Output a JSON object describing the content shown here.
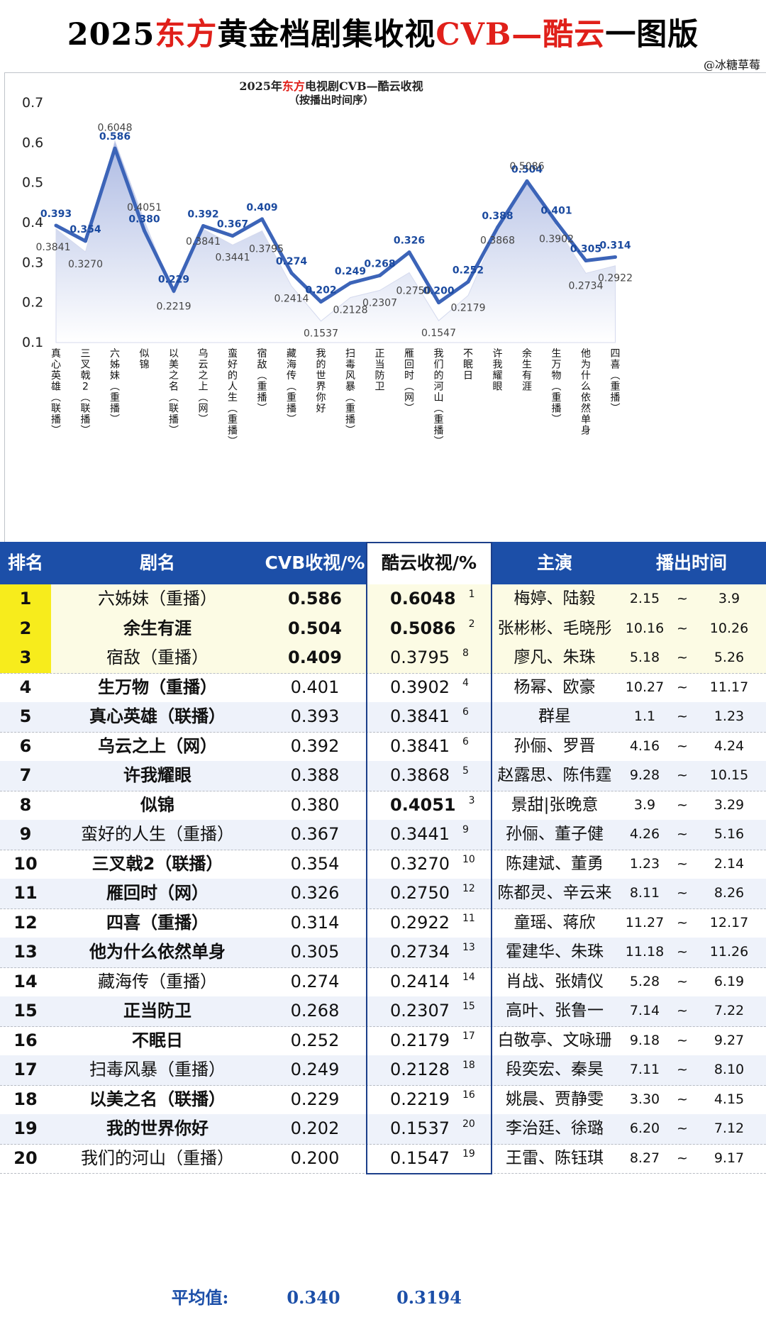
{
  "title": {
    "pre": "2025",
    "red1": "东方",
    "mid": "黄金档剧集收视",
    "red2": "CVB—酷云",
    "post": "一图版"
  },
  "watermark": "@冰糖草莓",
  "chart_data": {
    "type": "line",
    "title_pre": "2025年",
    "title_red": "东方",
    "title_post": "电视剧CVB—酷云收视",
    "subtitle": "（按播出时间序）",
    "ylim": [
      0.1,
      0.7
    ],
    "yticks": [
      "0.7",
      "0.6",
      "0.5",
      "0.4",
      "0.3",
      "0.2",
      "0.1"
    ],
    "categories": [
      "真心英雄（联播）",
      "三叉戟2（联播）",
      "六姊妹（重播）",
      "似锦",
      "以美之名（联播）",
      "乌云之上（网）",
      "蛮好的人生（重播）",
      "宿敌（重播）",
      "藏海传（重播）",
      "我的世界你好",
      "扫毒风暴（重播）",
      "正当防卫",
      "雁回时（网）",
      "我们的河山（重播）",
      "不眠日",
      "许我耀眼",
      "余生有涯",
      "生万物（重播）",
      "他为什么依然单身",
      "四喜（重播）"
    ],
    "cvb": [
      0.393,
      0.354,
      0.586,
      0.38,
      0.229,
      0.392,
      0.367,
      0.409,
      0.274,
      0.202,
      0.249,
      0.268,
      0.326,
      0.2,
      0.252,
      0.388,
      0.504,
      0.401,
      0.305,
      0.314
    ],
    "kuyun": [
      0.3841,
      0.327,
      0.6048,
      0.4051,
      0.2219,
      0.3841,
      0.3441,
      0.3795,
      0.2414,
      0.1537,
      0.2128,
      0.2307,
      0.275,
      0.1547,
      0.2179,
      0.3868,
      0.5086,
      0.3902,
      0.2734,
      0.2922
    ],
    "cvb_labels": [
      "0.393",
      "0.354",
      "0.586",
      "0.380",
      "0.229",
      "0.392",
      "0.367",
      "0.409",
      "0.274",
      "0.202",
      "0.249",
      "0.268",
      "0.326",
      "0.200",
      "0.252",
      "0.388",
      "0.504",
      "0.401",
      "0.305",
      "0.314"
    ],
    "kuyun_labels": [
      "0.3841",
      "0.3270",
      "0.6048",
      "0.4051",
      "0.2219",
      "0.3841",
      "0.3441",
      "0.3795",
      "0.2414",
      "0.1537",
      "0.2128",
      "0.2307",
      "0.2750",
      "0.1547",
      "0.2179",
      "0.3868",
      "0.5086",
      "0.3902",
      "0.2734",
      "0.2922"
    ],
    "kuyun_label_side": [
      "left",
      "below",
      "above",
      "above",
      "below",
      "below",
      "below",
      "right",
      "below",
      "below",
      "below",
      "below",
      "right",
      "below",
      "below",
      "below",
      "above",
      "below",
      "below",
      "below"
    ],
    "colors": {
      "cvb_line": "#3c64b8",
      "cvb_label": "#1b4a9f",
      "kuyun_area": "#c5cde9",
      "kuyun_label": "#444444"
    }
  },
  "table": {
    "headers": [
      "排名",
      "剧名",
      "CVB收视/%",
      "酷云收视/%",
      "主演",
      "播出时间"
    ],
    "rows": [
      {
        "rank": "1",
        "name": "六姊妹（重播）",
        "cvb": "0.586",
        "kuyun": "0.6048",
        "krank": "1",
        "actors": "梅婷、陆毅",
        "start": "2.15",
        "tilde": "~",
        "end": "3.9"
      },
      {
        "rank": "2",
        "name": "余生有涯",
        "cvb": "0.504",
        "kuyun": "0.5086",
        "krank": "2",
        "actors": "张彬彬、毛晓彤",
        "start": "10.16",
        "tilde": "~",
        "end": "10.26"
      },
      {
        "rank": "3",
        "name": "宿敌（重播）",
        "cvb": "0.409",
        "kuyun": "0.3795",
        "krank": "8",
        "actors": "廖凡、朱珠",
        "start": "5.18",
        "tilde": "~",
        "end": "5.26"
      },
      {
        "rank": "4",
        "name": "生万物（重播）",
        "cvb": "0.401",
        "kuyun": "0.3902",
        "krank": "4",
        "actors": "杨幂、欧豪",
        "start": "10.27",
        "tilde": "~",
        "end": "11.17"
      },
      {
        "rank": "5",
        "name": "真心英雄（联播）",
        "cvb": "0.393",
        "kuyun": "0.3841",
        "krank": "6",
        "actors": "群星",
        "start": "1.1",
        "tilde": "~",
        "end": "1.23"
      },
      {
        "rank": "6",
        "name": "乌云之上（网）",
        "cvb": "0.392",
        "kuyun": "0.3841",
        "krank": "6",
        "actors": "孙俪、罗晋",
        "start": "4.16",
        "tilde": "~",
        "end": "4.24"
      },
      {
        "rank": "7",
        "name": "许我耀眼",
        "cvb": "0.388",
        "kuyun": "0.3868",
        "krank": "5",
        "actors": "赵露思、陈伟霆",
        "start": "9.28",
        "tilde": "~",
        "end": "10.15"
      },
      {
        "rank": "8",
        "name": "似锦",
        "cvb": "0.380",
        "kuyun": "0.4051",
        "krank": "3",
        "actors": "景甜|张晚意",
        "start": "3.9",
        "tilde": "~",
        "end": "3.29"
      },
      {
        "rank": "9",
        "name": "蛮好的人生（重播）",
        "cvb": "0.367",
        "kuyun": "0.3441",
        "krank": "9",
        "actors": "孙俪、董子健",
        "start": "4.26",
        "tilde": "~",
        "end": "5.16"
      },
      {
        "rank": "10",
        "name": "三叉戟2（联播）",
        "cvb": "0.354",
        "kuyun": "0.3270",
        "krank": "10",
        "actors": "陈建斌、董勇",
        "start": "1.23",
        "tilde": "~",
        "end": "2.14"
      },
      {
        "rank": "11",
        "name": "雁回时（网）",
        "cvb": "0.326",
        "kuyun": "0.2750",
        "krank": "12",
        "actors": "陈都灵、辛云来",
        "start": "8.11",
        "tilde": "~",
        "end": "8.26"
      },
      {
        "rank": "12",
        "name": "四喜（重播）",
        "cvb": "0.314",
        "kuyun": "0.2922",
        "krank": "11",
        "actors": "童瑶、蒋欣",
        "start": "11.27",
        "tilde": "~",
        "end": "12.17"
      },
      {
        "rank": "13",
        "name": "他为什么依然单身",
        "cvb": "0.305",
        "kuyun": "0.2734",
        "krank": "13",
        "actors": "霍建华、朱珠",
        "start": "11.18",
        "tilde": "~",
        "end": "11.26"
      },
      {
        "rank": "14",
        "name": "藏海传（重播）",
        "cvb": "0.274",
        "kuyun": "0.2414",
        "krank": "14",
        "actors": "肖战、张婧仪",
        "start": "5.28",
        "tilde": "~",
        "end": "6.19"
      },
      {
        "rank": "15",
        "name": "正当防卫",
        "cvb": "0.268",
        "kuyun": "0.2307",
        "krank": "15",
        "actors": "高叶、张鲁一",
        "start": "7.14",
        "tilde": "~",
        "end": "7.22"
      },
      {
        "rank": "16",
        "name": "不眠日",
        "cvb": "0.252",
        "kuyun": "0.2179",
        "krank": "17",
        "actors": "白敬亭、文咏珊",
        "start": "9.18",
        "tilde": "~",
        "end": "9.27"
      },
      {
        "rank": "17",
        "name": "扫毒风暴（重播）",
        "cvb": "0.249",
        "kuyun": "0.2128",
        "krank": "18",
        "actors": "段奕宏、秦昊",
        "start": "7.11",
        "tilde": "~",
        "end": "8.10"
      },
      {
        "rank": "18",
        "name": "以美之名（联播）",
        "cvb": "0.229",
        "kuyun": "0.2219",
        "krank": "16",
        "actors": "姚晨、贾静雯",
        "start": "3.30",
        "tilde": "~",
        "end": "4.15"
      },
      {
        "rank": "19",
        "name": "我的世界你好",
        "cvb": "0.202",
        "kuyun": "0.1537",
        "krank": "20",
        "actors": "李治廷、徐璐",
        "start": "6.20",
        "tilde": "~",
        "end": "7.12"
      },
      {
        "rank": "20",
        "name": "我们的河山（重播）",
        "cvb": "0.200",
        "kuyun": "0.1547",
        "krank": "19",
        "actors": "王雷、陈钰琪",
        "start": "8.27",
        "tilde": "~",
        "end": "9.17"
      }
    ],
    "bold_name_ranks": [
      "2",
      "4",
      "5",
      "6",
      "7",
      "8",
      "10",
      "11",
      "12",
      "13",
      "15",
      "16",
      "18",
      "19"
    ],
    "bold_cvb_ranks": [
      "1",
      "2",
      "3"
    ],
    "bold_kuyun_ranks": [
      "1",
      "2",
      "8"
    ],
    "highlight_colors": {
      "rank_cell": "#f7ec1c",
      "row_bg": "#fcfbe4",
      "alt_bg": "#eef2fa",
      "header_bg": "#1c4fa8"
    }
  },
  "average": {
    "label": "平均值:",
    "cvb": "0.340",
    "kuyun": "0.3194"
  }
}
